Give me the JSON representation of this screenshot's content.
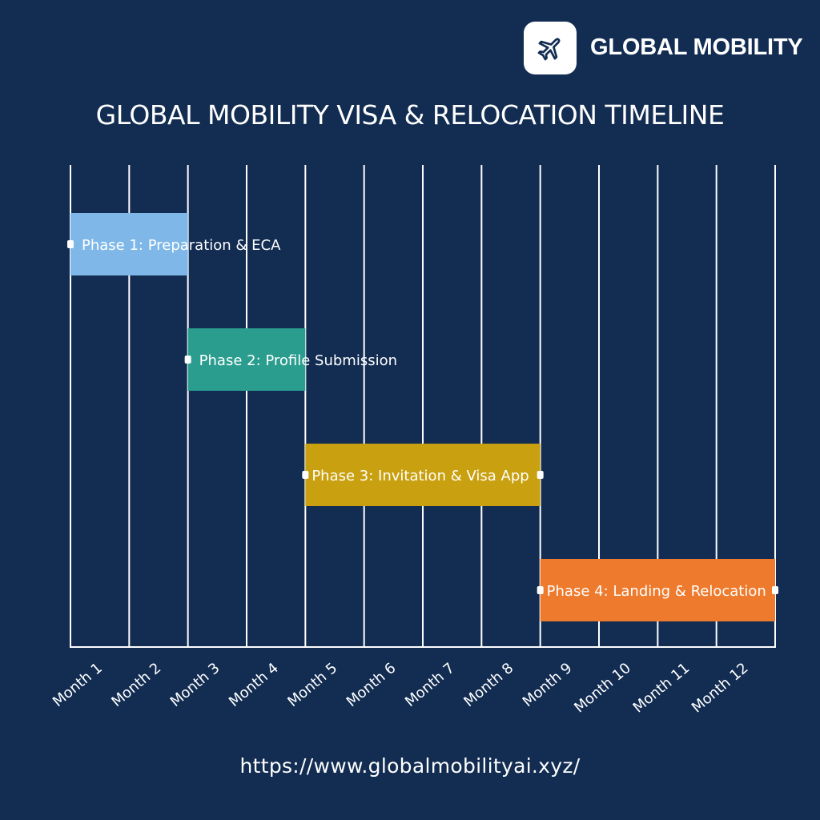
{
  "brand": {
    "name": "GLOBAL MOBILITY",
    "logo_icon": "airplane-icon"
  },
  "footer": {
    "url": "https://www.globalmobilityai.xyz/"
  },
  "colors": {
    "background": "#122c52",
    "grid": "#ffffff",
    "label": "#ffffff"
  },
  "chart_data": {
    "type": "gantt",
    "title": "GLOBAL MOBILITY VISA & RELOCATION TIMELINE",
    "xlabel": "",
    "ylabel": "",
    "categories": [
      "Month 1",
      "Month 2",
      "Month 3",
      "Month 4",
      "Month 5",
      "Month 6",
      "Month 7",
      "Month 8",
      "Month 9",
      "Month 10",
      "Month 11",
      "Month 12"
    ],
    "grid": true,
    "tasks": [
      {
        "name": "Phase 1: Preparation & ECA",
        "start": 1,
        "end": 3,
        "color": "#7fb8e8"
      },
      {
        "name": "Phase 2: Profile Submission",
        "start": 3,
        "end": 5,
        "color": "#2a9d8f"
      },
      {
        "name": "Phase 3: Invitation & Visa App",
        "start": 5,
        "end": 9,
        "color": "#c9a00f"
      },
      {
        "name": "Phase 4: Landing & Relocation",
        "start": 9,
        "end": 13,
        "color": "#ee7a2d"
      }
    ]
  }
}
